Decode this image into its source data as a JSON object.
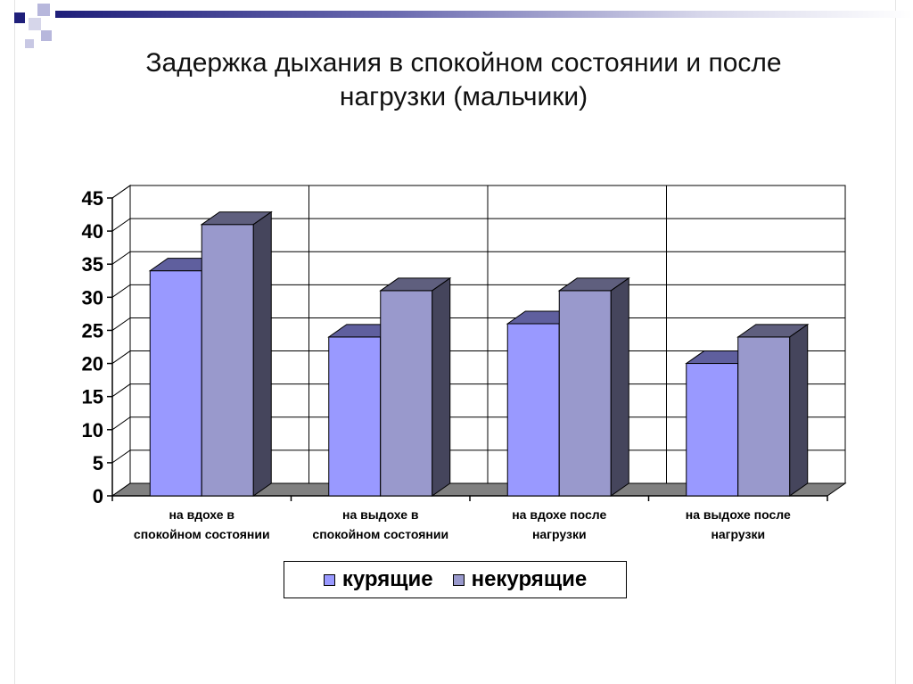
{
  "slide": {
    "title_line1": "Задержка дыхания в спокойном состоянии и после",
    "title_line2": "нагрузки (мальчики)"
  },
  "colors": {
    "header_gradient_dark": "#1f1f7a",
    "deco_dark": "#1f1f7a",
    "deco_light": "#b7b7dc"
  },
  "chart_data": {
    "type": "bar",
    "style": "3d-clustered-column",
    "title": "",
    "xlabel": "",
    "ylabel": "",
    "ylim": [
      0,
      45
    ],
    "yticks": [
      0,
      5,
      10,
      15,
      20,
      25,
      30,
      35,
      40,
      45
    ],
    "grid": true,
    "legend_position": "bottom",
    "categories": [
      [
        "на вдохе в",
        "спокойном состоянии"
      ],
      [
        "на выдохе в",
        "спокойном состоянии"
      ],
      [
        "на вдохе после",
        "нагрузки"
      ],
      [
        "на выдохе после",
        "нагрузки"
      ]
    ],
    "series": [
      {
        "name": "курящие",
        "values": [
          34,
          24,
          26,
          20
        ],
        "color": "#9999ff"
      },
      {
        "name": "некурящие",
        "values": [
          41,
          31,
          31,
          24
        ],
        "color": "#9999cc"
      }
    ]
  }
}
